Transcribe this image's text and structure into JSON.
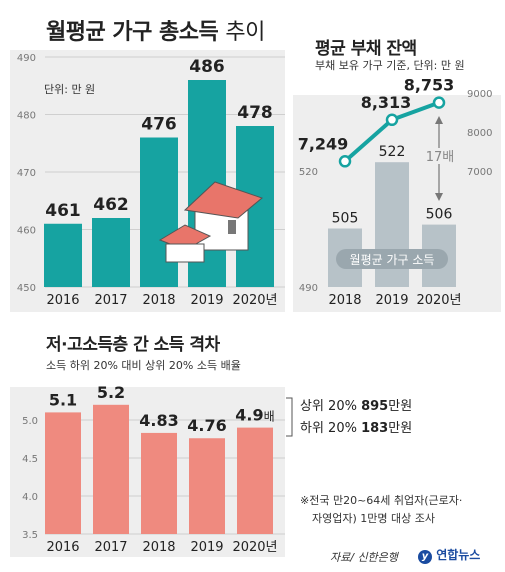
{
  "colors": {
    "teal": "#16a3a1",
    "gray_bar": "#b7c2c8",
    "salmon": "#ef8a7f",
    "axis_text": "#777777",
    "legend_badge": "#9aa7ae"
  },
  "chart_data": [
    {
      "type": "bar",
      "title_bold": "월평균 가구 총소득",
      "title_light": "추이",
      "unit_note": "단위: 만 원",
      "categories": [
        "2016",
        "2017",
        "2018",
        "2019",
        "2020년"
      ],
      "values": [
        461,
        462,
        476,
        486,
        478
      ],
      "value_labels": [
        "461",
        "462",
        "476",
        "486",
        "478"
      ],
      "ylim": [
        450,
        490
      ],
      "yticks": [
        "450",
        "460",
        "470",
        "480",
        "490"
      ],
      "grid": true,
      "decoration": "house-icon"
    },
    {
      "type": "bar+line",
      "title": "평균 부채 잔액",
      "subtitle": "부채 보유 가구 기준, 단위: 만 원",
      "categories": [
        "2018",
        "2019",
        "2020년"
      ],
      "bar_series": {
        "name": "월평균 가구 소득",
        "values": [
          505,
          522,
          506
        ],
        "labels": [
          "505",
          "522",
          "506"
        ],
        "ylim": [
          490,
          530
        ],
        "yticks": [
          "490",
          "520"
        ]
      },
      "line_series": {
        "values": [
          7249,
          8313,
          8753
        ],
        "labels": [
          "7,249",
          "8,313",
          "8,753"
        ],
        "ylim": [
          7000,
          9000
        ],
        "yticks": [
          "7000",
          "8000",
          "9000"
        ]
      },
      "annotation": "17배"
    },
    {
      "type": "bar",
      "title": "저·고소득층 간 소득 격차",
      "subtitle": "소득 하위 20% 대비 상위 20% 소득 배율",
      "categories": [
        "2016",
        "2017",
        "2018",
        "2019",
        "2020년"
      ],
      "values": [
        5.1,
        5.2,
        4.83,
        4.76,
        4.9
      ],
      "value_labels": [
        "5.1",
        "5.2",
        "4.83",
        "4.76",
        "4.9"
      ],
      "last_suffix": "배",
      "ylim": [
        3.5,
        5.25
      ],
      "yticks": [
        "3.5",
        "4.0",
        "4.5",
        "5.0"
      ],
      "grid": true,
      "callout": {
        "top_prefix": "상위 20%",
        "top_value": "895",
        "top_unit": "만원",
        "bottom_prefix": "하위 20%",
        "bottom_value": "183",
        "bottom_unit": "만원"
      }
    }
  ],
  "footnote_line1": "※전국 만20~64세 취업자(근로자·",
  "footnote_line2": "자영업자) 1만명 대상 조사",
  "source": "자료/ 신한은행",
  "logo_text": "연합뉴스"
}
